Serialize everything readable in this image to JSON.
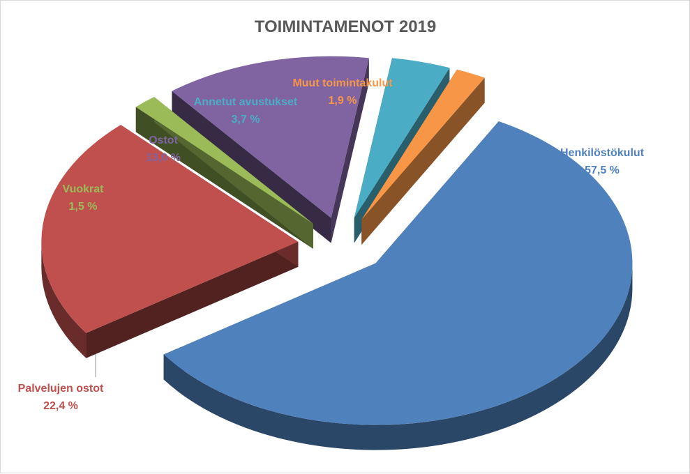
{
  "chart_data": {
    "type": "pie",
    "title": "TOIMINTAMENOT 2019",
    "slices": [
      {
        "label": "Henkilöstökulut",
        "value": 57.5,
        "value_label": "57,5 %",
        "color": "#4F81BD"
      },
      {
        "label": "Palvelujen ostot",
        "value": 22.4,
        "value_label": "22,4 %",
        "color": "#C0504D"
      },
      {
        "label": "Vuokrat",
        "value": 1.5,
        "value_label": "1,5 %",
        "color": "#9BBB59"
      },
      {
        "label": "Ostot",
        "value": 13.0,
        "value_label": "13,0 %",
        "color": "#8064A2"
      },
      {
        "label": "Annetut avustukset",
        "value": 3.7,
        "value_label": "3,7 %",
        "color": "#4BACC6"
      },
      {
        "label": "Muut toimintakulut",
        "value": 1.9,
        "value_label": "1,9 %",
        "color": "#F79646"
      }
    ],
    "legend": "none",
    "style": "3d-exploded"
  }
}
